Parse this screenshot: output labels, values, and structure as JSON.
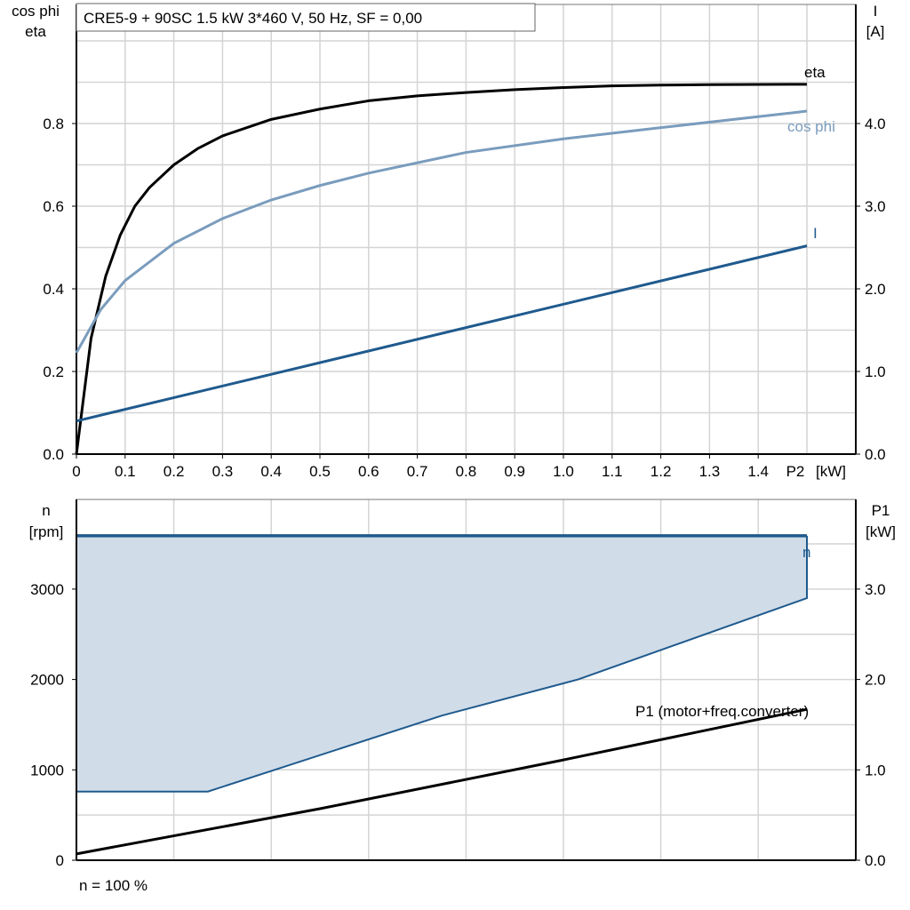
{
  "chart_data": [
    {
      "type": "line",
      "title": "CRE5-9 + 90SC   1.5 kW   3*460 V, 50 Hz, SF = 0,00",
      "xlabel": "P2 [kW]",
      "x_unit_label": "[kW]",
      "x_axis_name": "P2",
      "ylabel_left": [
        "cos phi",
        "eta"
      ],
      "ylabel_right": [
        "I",
        "[A]"
      ],
      "xlim": [
        0,
        1.6
      ],
      "x_ticks": [
        "0",
        "0.1",
        "0.2",
        "0.3",
        "0.4",
        "0.5",
        "0.6",
        "0.7",
        "0.8",
        "0.9",
        "1.0",
        "1.1",
        "1.2",
        "1.3",
        "1.4"
      ],
      "ylim_left": [
        0,
        1.1
      ],
      "y_ticks_left": [
        "0.0",
        "0.2",
        "0.4",
        "0.6",
        "0.8"
      ],
      "ylim_right": [
        0,
        5.5
      ],
      "y_ticks_right": [
        "0.0",
        "1.0",
        "2.0",
        "3.0",
        "4.0"
      ],
      "grid": true,
      "series": [
        {
          "name": "eta",
          "axis": "left",
          "color": "#000000",
          "x": [
            0,
            0.03,
            0.06,
            0.09,
            0.12,
            0.15,
            0.2,
            0.25,
            0.3,
            0.4,
            0.5,
            0.6,
            0.7,
            0.8,
            0.9,
            1.0,
            1.1,
            1.2,
            1.3,
            1.5
          ],
          "y": [
            0,
            0.28,
            0.43,
            0.53,
            0.6,
            0.645,
            0.7,
            0.74,
            0.77,
            0.81,
            0.835,
            0.855,
            0.867,
            0.875,
            0.882,
            0.887,
            0.891,
            0.893,
            0.894,
            0.895
          ]
        },
        {
          "name": "cos phi",
          "axis": "left",
          "color": "#7a9cbd",
          "x": [
            0,
            0.05,
            0.1,
            0.2,
            0.3,
            0.4,
            0.5,
            0.6,
            0.8,
            1.0,
            1.2,
            1.5
          ],
          "y": [
            0.245,
            0.35,
            0.42,
            0.51,
            0.57,
            0.615,
            0.65,
            0.68,
            0.73,
            0.763,
            0.79,
            0.83
          ]
        },
        {
          "name": "I",
          "axis": "right",
          "color": "#1f5a8e",
          "x": [
            0,
            1.5
          ],
          "y": [
            0.4,
            2.52
          ]
        }
      ]
    },
    {
      "type": "area",
      "xlim": [
        0,
        1.6
      ],
      "ylabel_left": [
        "n",
        "[rpm]"
      ],
      "ylabel_right": [
        "P1",
        "[kW]"
      ],
      "ylim_left": [
        0,
        4000
      ],
      "y_ticks_left": [
        "0",
        "1000",
        "2000",
        "3000"
      ],
      "ylim_right": [
        0,
        4.0
      ],
      "y_ticks_right": [
        "0.0",
        "1.0",
        "2.0",
        "3.0"
      ],
      "grid": true,
      "footnote": "n = 100 %",
      "series": [
        {
          "name": "n",
          "axis": "left",
          "color": "#1f5a8e",
          "fill": "#d0dce8",
          "x_max": [
            0,
            1.5
          ],
          "y_max": [
            3590,
            3590
          ],
          "x_min": [
            0,
            0.27,
            0.75,
            1.03,
            1.5
          ],
          "y_min": [
            760,
            760,
            1600,
            2000,
            2900
          ]
        },
        {
          "name": "P1 (motor+freq.converter)",
          "axis": "right",
          "color": "#000000",
          "x": [
            0,
            0.5,
            1.0,
            1.5
          ],
          "y": [
            0.07,
            0.57,
            1.11,
            1.67
          ]
        }
      ]
    }
  ]
}
